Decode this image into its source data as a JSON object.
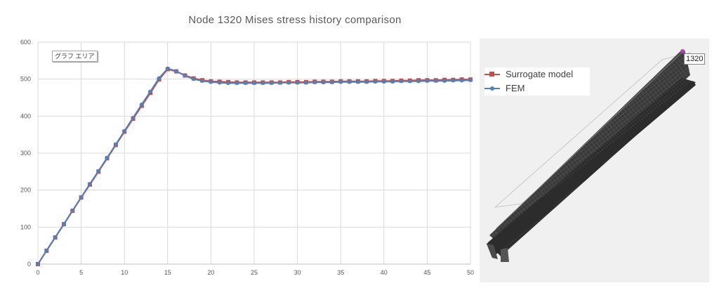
{
  "title": "Node 1320 Mises stress history comparison",
  "tooltip_label": "グラフ エリア",
  "model_view": {
    "node_label": "1320"
  },
  "colors": {
    "surrogate": "#c0504d",
    "fem": "#4f81bd",
    "grid": "#d9d9d9",
    "axis_text": "#595959"
  },
  "chart_data": {
    "type": "line",
    "title": "Node 1320 Mises stress history comparison",
    "xlabel": "",
    "ylabel": "",
    "xlim": [
      0,
      50
    ],
    "ylim": [
      0,
      600
    ],
    "x_ticks": [
      "0",
      "5",
      "10",
      "15",
      "20",
      "25",
      "30",
      "35",
      "40",
      "45",
      "50"
    ],
    "y_ticks": [
      "0",
      "100",
      "200",
      "300",
      "400",
      "500",
      "600"
    ],
    "grid": true,
    "legend_position": "right",
    "x": [
      0,
      1,
      2,
      3,
      4,
      5,
      6,
      7,
      8,
      9,
      10,
      11,
      12,
      13,
      14,
      15,
      16,
      17,
      18,
      19,
      20,
      21,
      22,
      23,
      24,
      25,
      26,
      27,
      28,
      29,
      30,
      31,
      32,
      33,
      34,
      35,
      36,
      37,
      38,
      39,
      40,
      41,
      42,
      43,
      44,
      45,
      46,
      47,
      48,
      49,
      50
    ],
    "series": [
      {
        "name": "Surrogate model",
        "color": "#c0504d",
        "marker": "square",
        "values": [
          0,
          36,
          72,
          108,
          144,
          180,
          215,
          250,
          286,
          322,
          358,
          393,
          428,
          463,
          499,
          527,
          521,
          510,
          502,
          497,
          494,
          493,
          492,
          491,
          491,
          491,
          491,
          491,
          491,
          492,
          492,
          492,
          493,
          493,
          493,
          494,
          494,
          494,
          494,
          495,
          495,
          495,
          496,
          496,
          497,
          497,
          497,
          498,
          498,
          499,
          499
        ]
      },
      {
        "name": "FEM",
        "color": "#4f81bd",
        "marker": "circle",
        "values": [
          0,
          37,
          73,
          109,
          145,
          181,
          217,
          252,
          288,
          324,
          360,
          396,
          432,
          467,
          503,
          529,
          522,
          509,
          500,
          495,
          492,
          490,
          489,
          489,
          489,
          489,
          489,
          489,
          490,
          490,
          490,
          490,
          491,
          491,
          491,
          492,
          492,
          492,
          492,
          493,
          493,
          493,
          494,
          494,
          494,
          495,
          495,
          495,
          496,
          496,
          497
        ]
      }
    ]
  }
}
